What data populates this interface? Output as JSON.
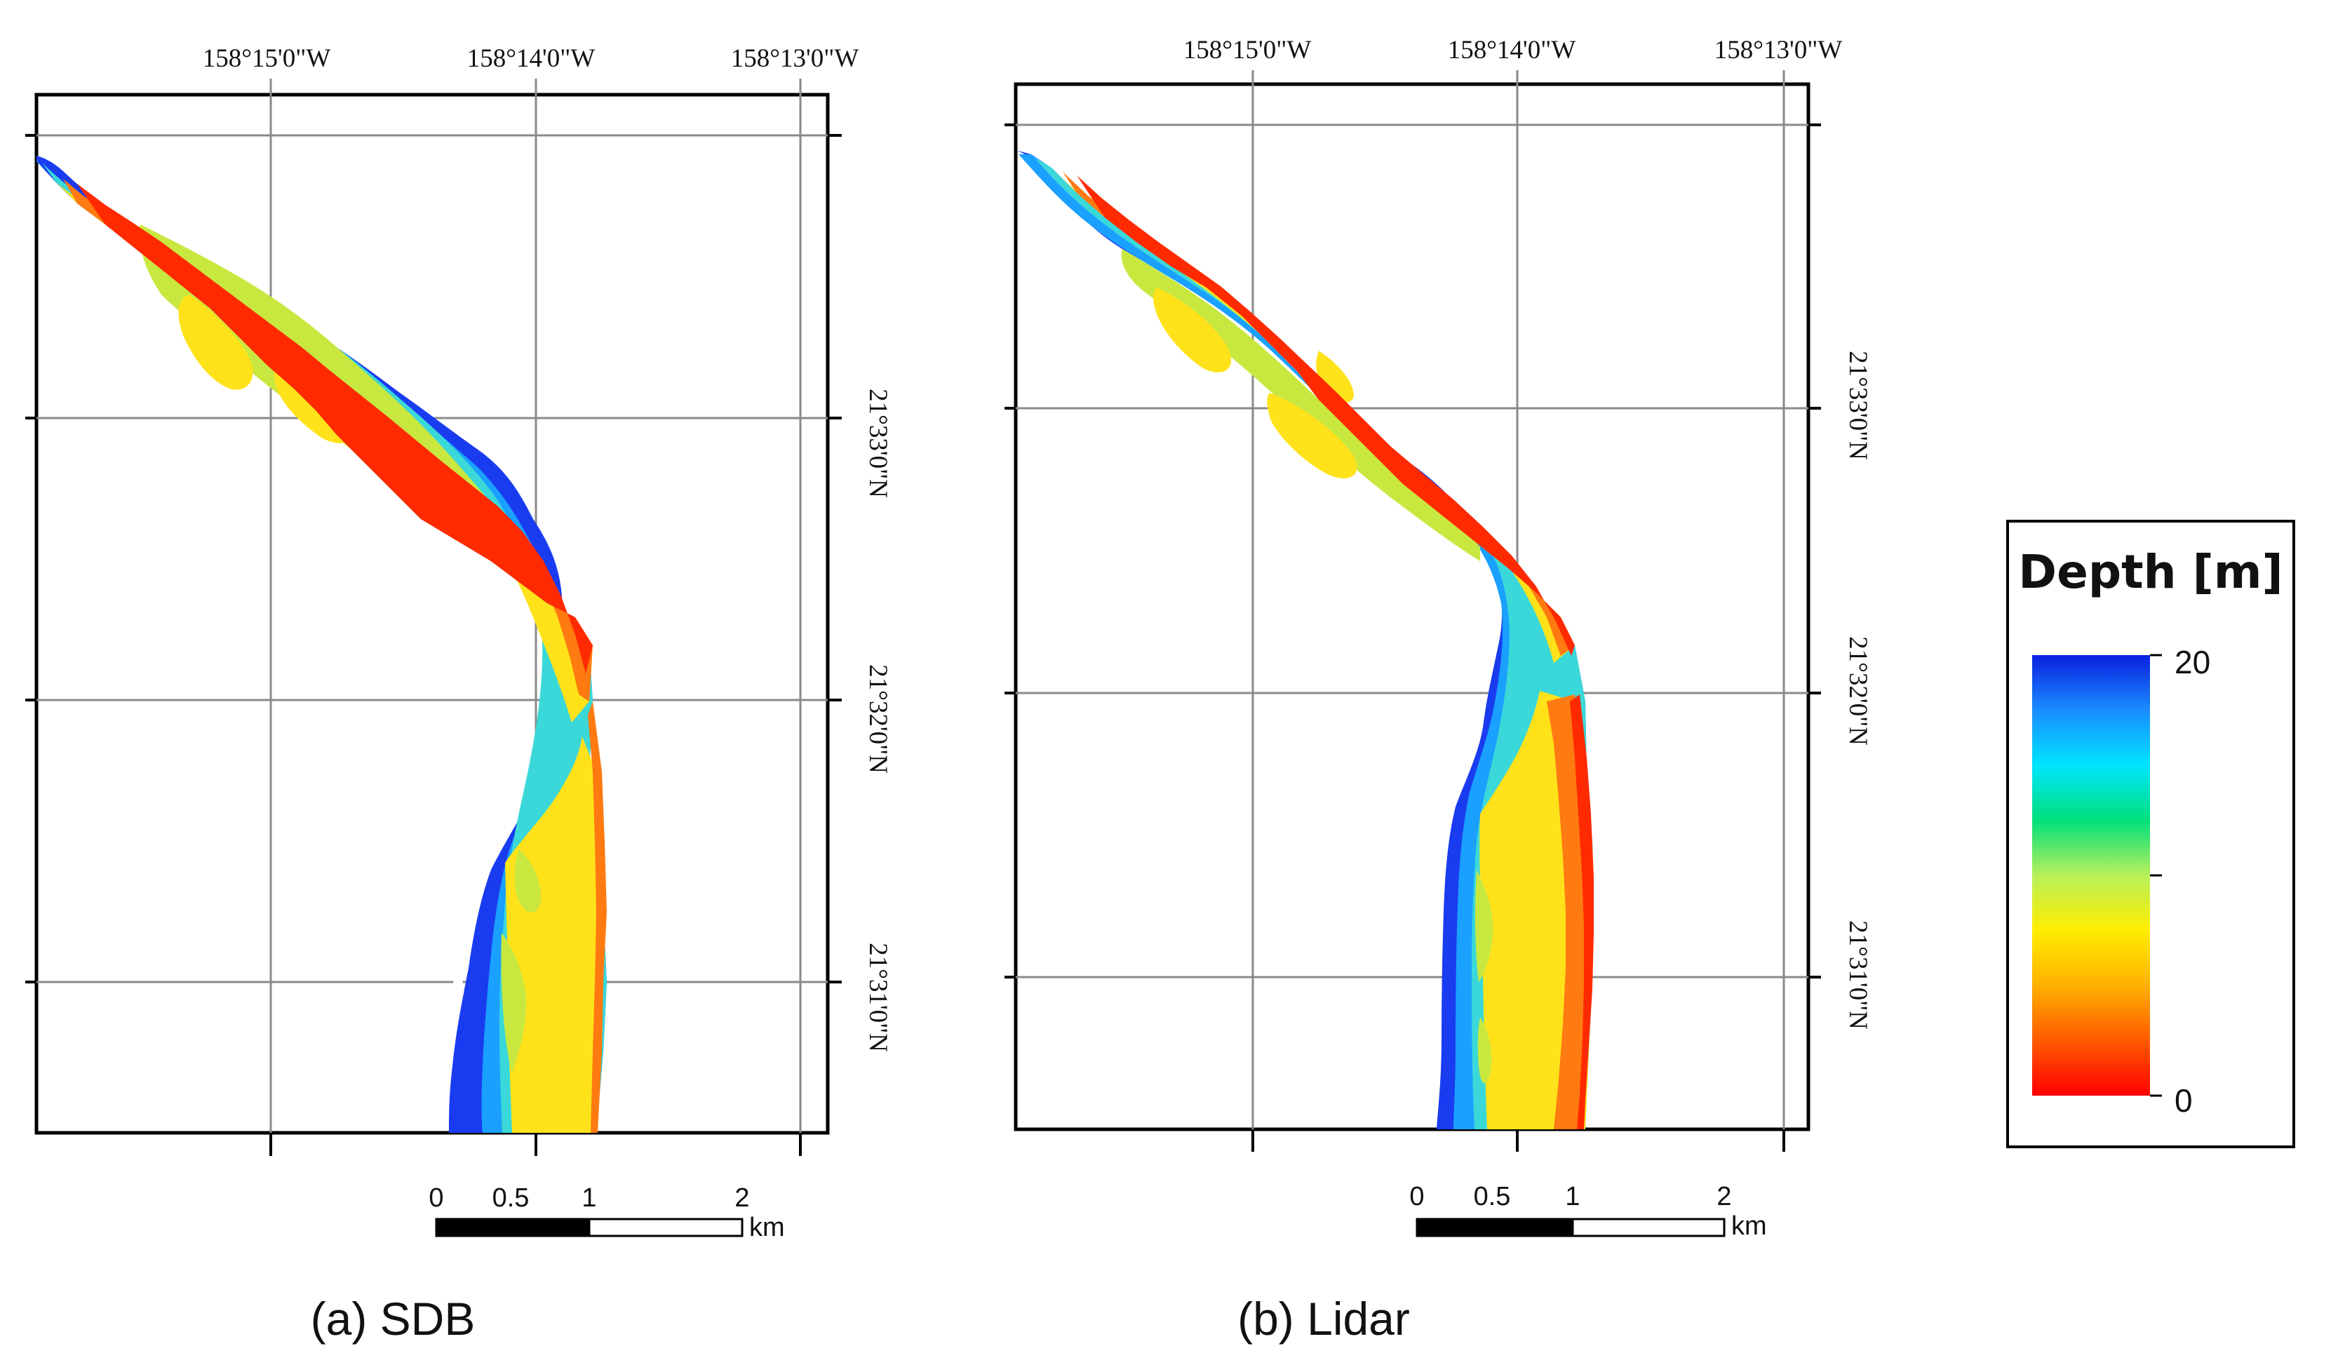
{
  "panels": [
    {
      "id": "a",
      "caption": "(a) SDB",
      "lon_labels": [
        "158°15'0\"W",
        "158°14'0\"W",
        "158°13'0\"W"
      ],
      "lat_labels": [
        "21°33'0\"N",
        "21°32'0\"N",
        "21°31'0\"N"
      ],
      "scale": {
        "ticks": [
          "0",
          "0.5",
          "1",
          "2"
        ],
        "unit": "km"
      }
    },
    {
      "id": "b",
      "caption": "(b) Lidar",
      "lon_labels": [
        "158°15'0\"W",
        "158°14'0\"W",
        "158°13'0\"W"
      ],
      "lat_labels": [
        "21°33'0\"N",
        "21°32'0\"N",
        "21°31'0\"N"
      ],
      "scale": {
        "ticks": [
          "0",
          "0.5",
          "1",
          "2"
        ],
        "unit": "km"
      }
    }
  ],
  "legend": {
    "title": "Depth [m]",
    "max_label": "20",
    "min_label": "0",
    "colors": [
      "#0a1fe0",
      "#1a8cff",
      "#00e5ff",
      "#00e07a",
      "#b8f05a",
      "#ffee00",
      "#ffb000",
      "#ff5a00",
      "#ff0000"
    ]
  },
  "colors": {
    "frame": "#000000",
    "grid": "#8a8a8a",
    "deep": "#1a3cf0",
    "mid_deep": "#1aa0ff",
    "mid": "#3ad8d8",
    "shallow_mid": "#c8e840",
    "shallow": "#ffe21a",
    "very_shallow": "#ff7a10",
    "edge": "#ff2a00"
  }
}
